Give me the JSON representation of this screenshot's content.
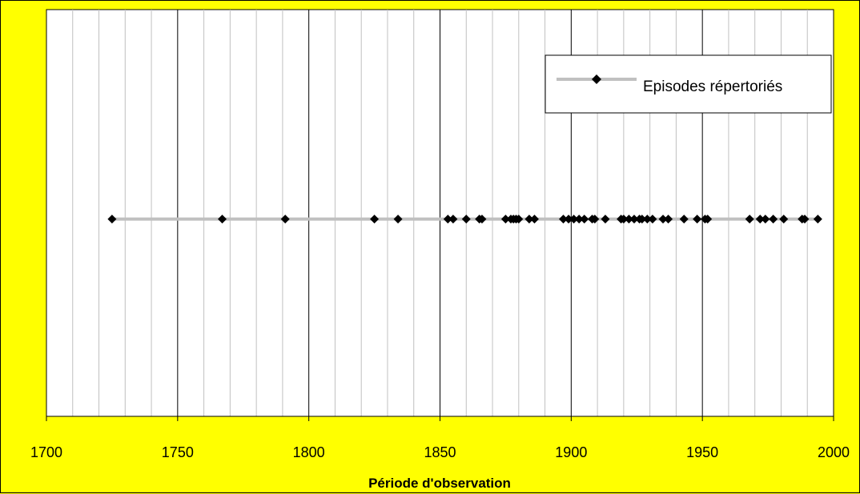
{
  "chart_data": {
    "type": "scatter",
    "title": "",
    "xlabel": "Période d'observation",
    "ylabel": "",
    "xlim": [
      1700,
      2000
    ],
    "x_ticks": [
      "1700",
      "1750",
      "1800",
      "1850",
      "1900",
      "1950",
      "2000"
    ],
    "major_grid_step": 50,
    "minor_grid_step": 10,
    "grid": true,
    "legend_position": "top-right",
    "series": [
      {
        "name": "Episodes répertoriés",
        "style": "line-with-diamond-markers",
        "line_color": "#c0c0c0",
        "marker_color": "#000000",
        "y_level": "middle",
        "x": [
          1725,
          1767,
          1791,
          1825,
          1834,
          1853,
          1855,
          1860,
          1865,
          1866,
          1875,
          1877,
          1878,
          1879,
          1880,
          1884,
          1886,
          1897,
          1899,
          1901,
          1903,
          1905,
          1908,
          1909,
          1913,
          1919,
          1920,
          1922,
          1924,
          1926,
          1927,
          1929,
          1931,
          1935,
          1937,
          1943,
          1948,
          1951,
          1952,
          1968,
          1972,
          1974,
          1977,
          1981,
          1988,
          1989,
          1994
        ]
      }
    ]
  },
  "colors": {
    "background": "#ffff00",
    "plot_area": "#ffffff",
    "major_grid": "#000000",
    "minor_grid": "#c0c0c0"
  }
}
